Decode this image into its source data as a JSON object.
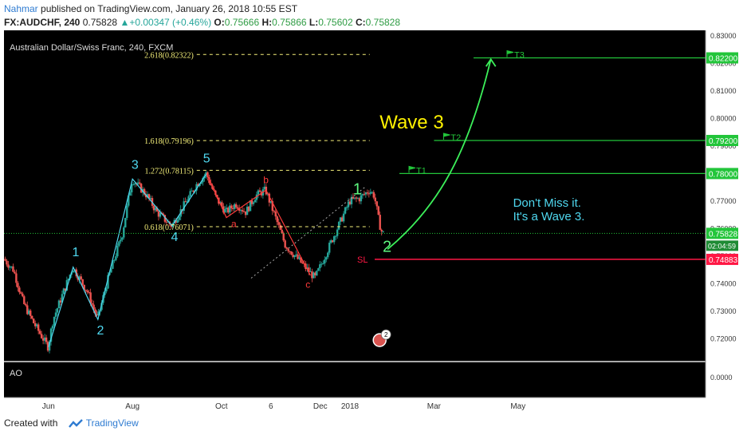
{
  "header": {
    "author": "Nahmar",
    "published": "published on TradingView.com, January 26, 2018 10:55 EST",
    "symbol": "FX:AUDCHF, 240",
    "last": "0.75828",
    "change_arrow": "▲",
    "change": "+0.00347 (+0.46%)",
    "o_label": "O:",
    "o_value": "0.75666",
    "h_label": "H:",
    "h_value": "0.75866",
    "l_label": "L:",
    "l_value": "0.75602",
    "c_label": "C:",
    "c_value": "0.75828"
  },
  "footer": {
    "created_with": "Created with",
    "brand": "TradingView"
  },
  "colors": {
    "background": "#000000",
    "candle_up": "#26a69a",
    "candle_down": "#ef5350",
    "fib": "#f5f07a",
    "target": "#22c53a",
    "stop": "#ff1744",
    "wave_cyan": "#4fd8f0",
    "wave_red": "#ff3b3b",
    "wave_green": "#5cf57d",
    "last_price": "#22c53a"
  },
  "chart_data": {
    "type": "candlestick",
    "title": "Australian Dollar/Swiss Franc, 240, FXCM",
    "ylim": [
      0.712,
      0.832
    ],
    "y_ticks": [
      "0.83000",
      "0.82000",
      "0.81000",
      "0.80000",
      "0.79000",
      "0.78000",
      "0.77000",
      "0.76000",
      "0.75000",
      "0.74000",
      "0.73000",
      "0.72000"
    ],
    "y_tick_values": [
      0.83,
      0.82,
      0.81,
      0.8,
      0.79,
      0.78,
      0.77,
      0.76,
      0.75,
      0.74,
      0.73,
      0.72
    ],
    "x_range": [
      0,
      100
    ],
    "x_ticks": [
      {
        "label": "Jun",
        "x": 9
      },
      {
        "label": "Aug",
        "x": 26
      },
      {
        "label": "Oct",
        "x": 44
      },
      {
        "label": "6",
        "x": 54
      },
      {
        "label": "Dec",
        "x": 64
      },
      {
        "label": "2018",
        "x": 70
      },
      {
        "label": "Mar",
        "x": 87
      },
      {
        "label": "May",
        "x": 104
      }
    ],
    "price_path": [
      [
        0,
        0.749
      ],
      [
        2,
        0.745
      ],
      [
        4,
        0.733
      ],
      [
        6,
        0.726
      ],
      [
        9,
        0.717
      ],
      [
        10,
        0.727
      ],
      [
        14,
        0.746
      ],
      [
        17,
        0.737
      ],
      [
        19,
        0.727
      ],
      [
        21,
        0.741
      ],
      [
        24,
        0.758
      ],
      [
        26,
        0.778
      ],
      [
        29,
        0.772
      ],
      [
        31,
        0.766
      ],
      [
        34,
        0.761
      ],
      [
        37,
        0.77
      ],
      [
        39,
        0.776
      ],
      [
        41,
        0.78
      ],
      [
        43,
        0.771
      ],
      [
        45,
        0.766
      ],
      [
        47,
        0.769
      ],
      [
        49,
        0.766
      ],
      [
        51,
        0.772
      ],
      [
        53,
        0.774
      ],
      [
        55,
        0.764
      ],
      [
        57,
        0.754
      ],
      [
        60,
        0.748
      ],
      [
        62,
        0.744
      ],
      [
        63,
        0.742
      ],
      [
        65,
        0.75
      ],
      [
        66,
        0.754
      ],
      [
        68,
        0.762
      ],
      [
        70,
        0.77
      ],
      [
        72,
        0.771
      ],
      [
        74,
        0.774
      ],
      [
        75,
        0.772
      ],
      [
        76,
        0.762
      ],
      [
        76.6,
        0.7583
      ]
    ],
    "fib_levels": [
      {
        "label": "2.618(0.82322)",
        "value": 0.82322,
        "x_start": 39,
        "x_end": 74
      },
      {
        "label": "1.618(0.79196)",
        "value": 0.79196,
        "x_start": 39,
        "x_end": 74
      },
      {
        "label": "1.272(0.78115)",
        "value": 0.78115,
        "x_start": 39,
        "x_end": 74
      },
      {
        "label": "0.618(0.76071)",
        "value": 0.76071,
        "x_start": 39,
        "x_end": 74
      }
    ],
    "targets": [
      {
        "label": "T1",
        "value": 0.78,
        "x_start": 80
      },
      {
        "label": "T2",
        "value": 0.792,
        "x_start": 87
      },
      {
        "label": "T3",
        "value": 0.822,
        "x_start": 95
      }
    ],
    "stop": {
      "label": "SL",
      "value": 0.74883,
      "x_start": 75
    },
    "last_price_tag": "0.75828",
    "countdown": "02:04:59",
    "price_tags": [
      {
        "label": "0.82200",
        "value": 0.822,
        "kind": "target"
      },
      {
        "label": "0.79200",
        "value": 0.792,
        "kind": "target"
      },
      {
        "label": "0.78000",
        "value": 0.78,
        "kind": "target"
      },
      {
        "label": "0.75828",
        "value": 0.75828,
        "kind": "last"
      },
      {
        "label": "0.74883",
        "value": 0.74883,
        "kind": "stop"
      }
    ],
    "wave_labels": [
      {
        "text": "1",
        "x": 14.5,
        "y": 0.75,
        "color": "cyan",
        "size": 16
      },
      {
        "text": "2",
        "x": 19.5,
        "y": 0.7215,
        "color": "cyan",
        "size": 16
      },
      {
        "text": "3",
        "x": 26.5,
        "y": 0.7817,
        "color": "cyan",
        "size": 16
      },
      {
        "text": "4",
        "x": 34.5,
        "y": 0.7555,
        "color": "cyan",
        "size": 16
      },
      {
        "text": "5",
        "x": 41,
        "y": 0.784,
        "color": "cyan",
        "size": 16
      },
      {
        "text": "a",
        "x": 46.5,
        "y": 0.7605,
        "color": "red",
        "size": 12
      },
      {
        "text": "b",
        "x": 53,
        "y": 0.7765,
        "color": "red",
        "size": 12
      },
      {
        "text": "c",
        "x": 61.5,
        "y": 0.7385,
        "color": "red",
        "size": 12
      },
      {
        "text": "1",
        "x": 71.5,
        "y": 0.7725,
        "color": "green",
        "size": 20
      },
      {
        "text": "2",
        "x": 77.5,
        "y": 0.7515,
        "color": "green",
        "size": 20
      }
    ],
    "wave_lines": [
      [
        [
          9,
          0.717
        ],
        [
          14,
          0.746
        ],
        [
          19,
          0.727
        ],
        [
          26,
          0.778
        ],
        [
          34,
          0.761
        ],
        [
          41,
          0.78
        ]
      ],
      [
        [
          41,
          0.78
        ],
        [
          45,
          0.764
        ],
        [
          53,
          0.774
        ],
        [
          62,
          0.743
        ]
      ]
    ],
    "channel_line": [
      [
        50,
        0.742
      ],
      [
        73,
        0.775
      ]
    ],
    "annotations": [
      {
        "text": "Wave 3",
        "x": 76,
        "y": 0.7963,
        "color": "yellow",
        "size": 24
      },
      {
        "text": "Don't Miss it.",
        "x": 103,
        "y": 0.768,
        "color": "cyan",
        "size": 15
      },
      {
        "text": "It's a Wave 3.",
        "x": 103,
        "y": 0.763,
        "color": "cyan",
        "size": 15
      }
    ],
    "projection_arrow": [
      [
        77.6,
        0.7525
      ],
      [
        88,
        0.768
      ],
      [
        94,
        0.788
      ],
      [
        98.5,
        0.8215
      ]
    ],
    "indicator": {
      "name": "AO",
      "y_tick": "0.0000"
    },
    "event_badge": {
      "count": "2",
      "x": 76,
      "y": 0.7195
    }
  }
}
